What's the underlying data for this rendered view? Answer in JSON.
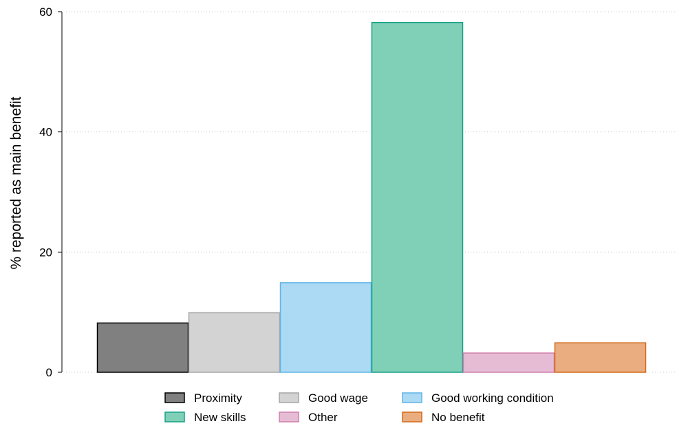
{
  "chart_data": {
    "type": "bar",
    "title": "",
    "xlabel": "",
    "ylabel": "% reported as main benefit",
    "ylim": [
      0,
      60
    ],
    "yticks": [
      0,
      20,
      40,
      60
    ],
    "grid": true,
    "legend_position": "bottom",
    "categories": [
      "Proximity",
      "Good wage",
      "Good working condition",
      "New skills",
      "Other",
      "No benefit"
    ],
    "values": [
      8.2,
      9.9,
      14.9,
      58.2,
      3.2,
      4.9
    ],
    "fills": [
      "#808080",
      "#d3d3d3",
      "#acd9f3",
      "#80d0b8",
      "#e6bcd4",
      "#eaad80"
    ],
    "strokes": [
      "#000000",
      "#a6a6a6",
      "#5fb4e6",
      "#16a085",
      "#cf7fab",
      "#d3691a"
    ]
  }
}
